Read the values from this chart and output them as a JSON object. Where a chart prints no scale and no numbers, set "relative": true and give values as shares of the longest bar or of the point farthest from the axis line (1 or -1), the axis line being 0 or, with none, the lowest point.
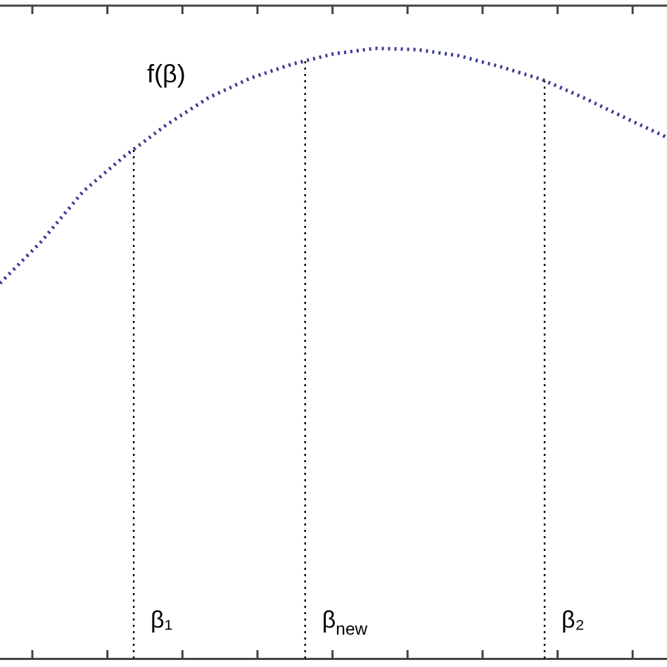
{
  "chart_data": {
    "type": "line",
    "relative": true,
    "categories": [
      null,
      null,
      null,
      null,
      null,
      null,
      null,
      null,
      null,
      null,
      null,
      null,
      null,
      null,
      null,
      null,
      null
    ],
    "series": [
      {
        "name": "f(β)",
        "color": "#3c3c96",
        "values": [
          0.615,
          0.684,
          0.766,
          0.824,
          0.875,
          0.919,
          0.951,
          0.974,
          0.991,
          1.0,
          0.998,
          0.988,
          0.97,
          0.949,
          0.919,
          0.886,
          0.854
        ]
      }
    ],
    "annotations": [
      "β₁",
      "β$_{new}$",
      "β₂"
    ],
    "marker": "none",
    "line_style": "dotted",
    "legend": false
  }
}
